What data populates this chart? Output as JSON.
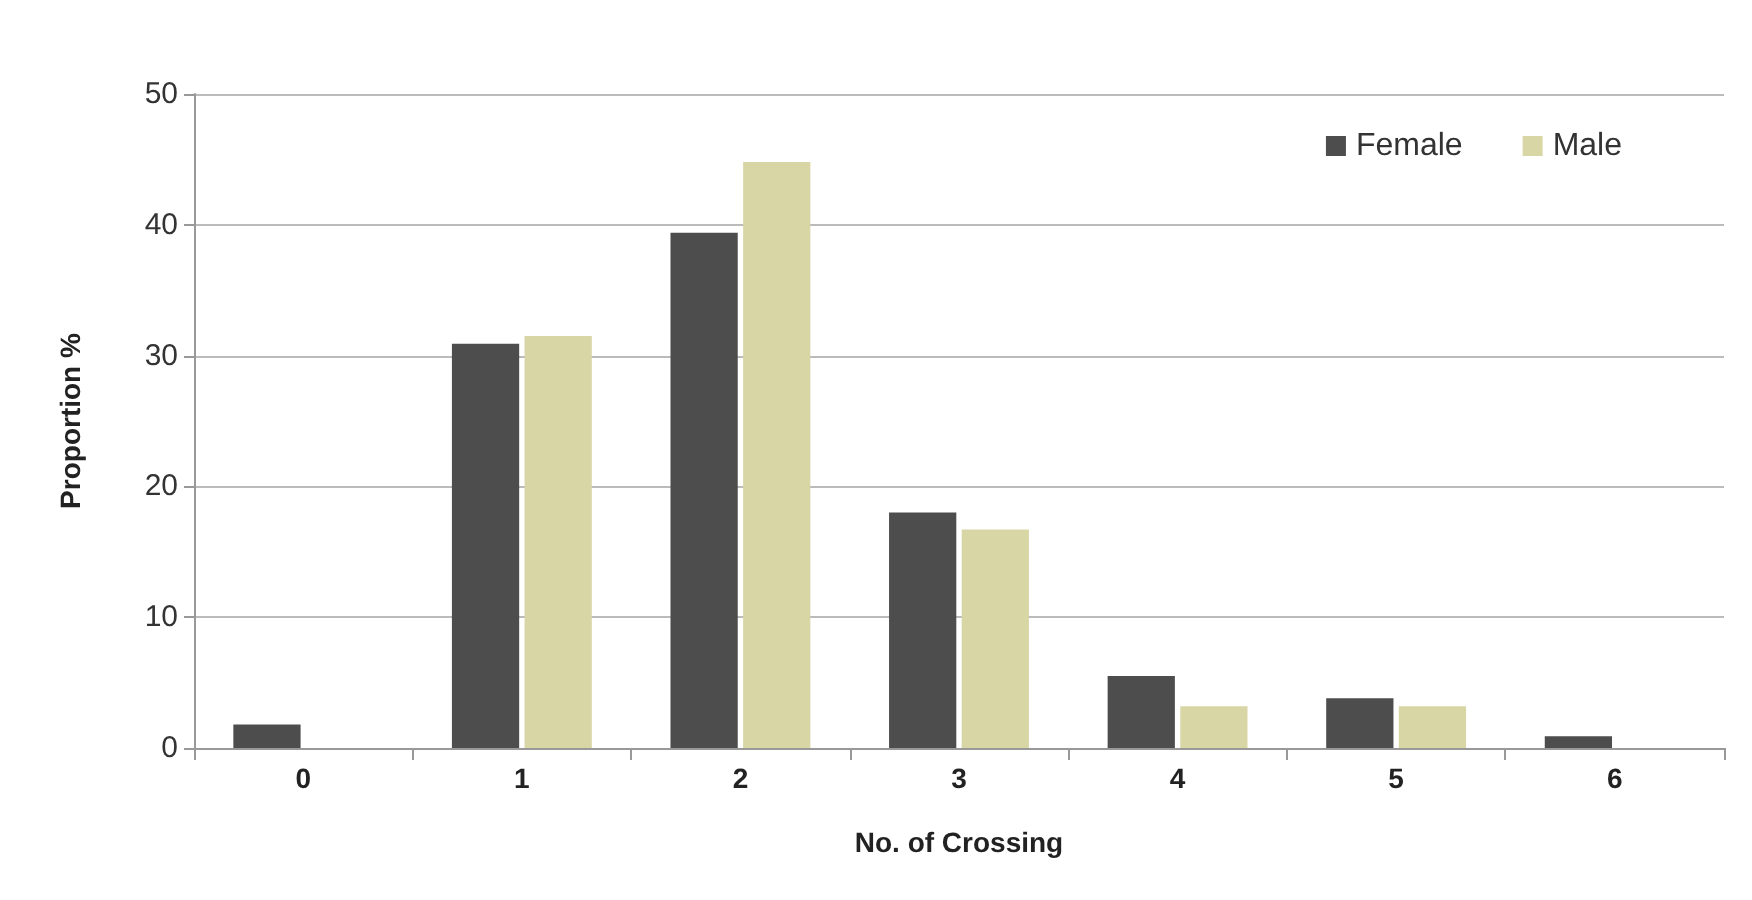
{
  "chart_data": {
    "type": "bar",
    "xlabel": "No. of Crossing",
    "ylabel": "Proportion %",
    "categories": [
      "0",
      "1",
      "2",
      "3",
      "4",
      "5",
      "6"
    ],
    "series": [
      {
        "name": "Female",
        "color": "#4d4d4d",
        "values": [
          1.8,
          30.9,
          39.4,
          18,
          5.5,
          3.8,
          0.9
        ]
      },
      {
        "name": "Male",
        "color": "#d9d6a6",
        "values": [
          0,
          31.5,
          44.8,
          16.7,
          3.2,
          3.2,
          0
        ]
      }
    ],
    "ylim": [
      0,
      50
    ],
    "yticks": [
      0,
      10,
      20,
      30,
      40,
      50
    ],
    "grid": "y",
    "legend": "top right"
  }
}
